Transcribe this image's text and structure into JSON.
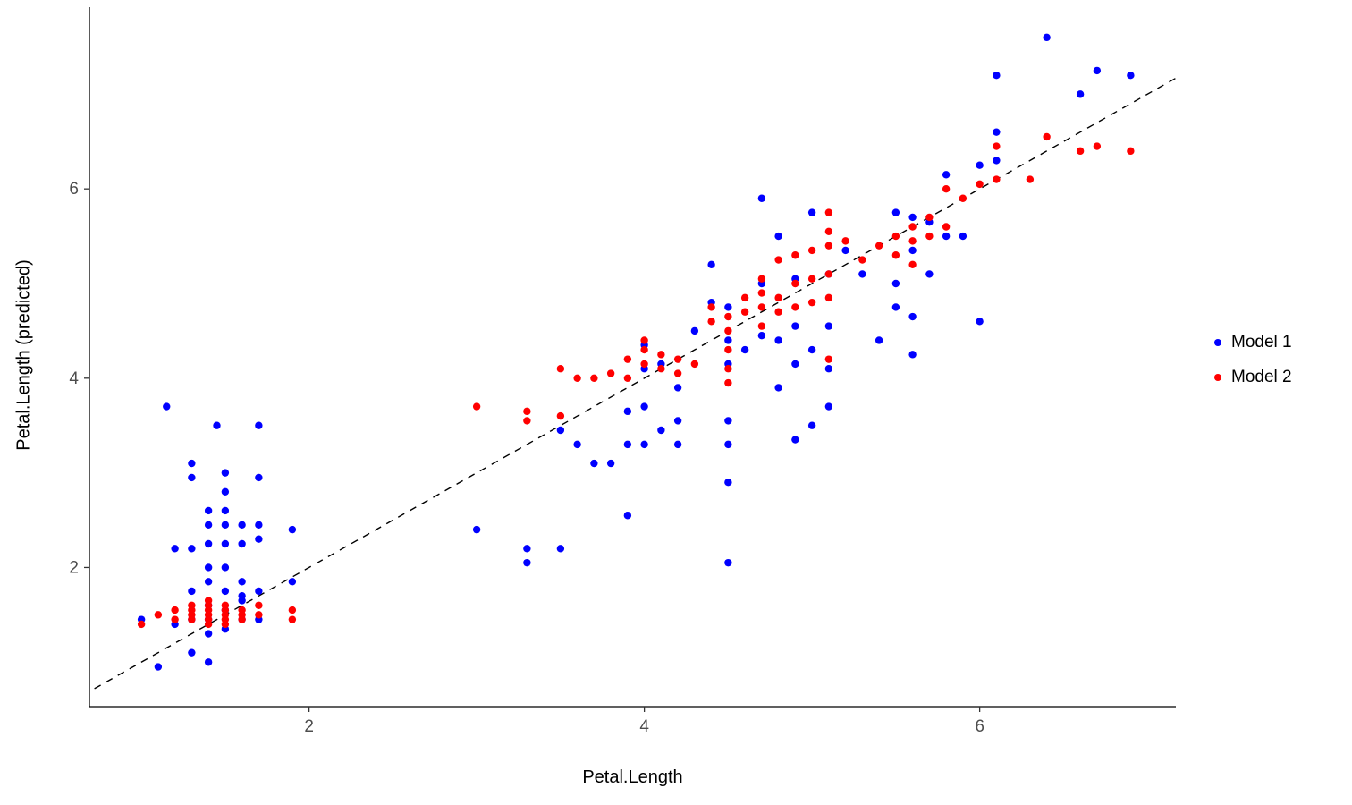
{
  "figure": {
    "background": "#FFFFFF"
  },
  "chart_data": {
    "type": "scatter",
    "title": "",
    "xlabel": "Petal.Length",
    "ylabel": "Petal.Length (predicted)",
    "x_domain": [
      0.69,
      7.17
    ],
    "y_domain": [
      0.53,
      7.92
    ],
    "x_ticks": [
      2,
      4,
      6
    ],
    "y_ticks": [
      2,
      4,
      6
    ],
    "grid": false,
    "legend_position": "right",
    "point_radius_px": 4.2,
    "axis_color": "#000000",
    "tick_label_color": "#4d4d4d",
    "reference_line": {
      "type": "identity",
      "style": "dashed",
      "color": "#000000",
      "from": 0.72,
      "to": 7.17
    },
    "series": [
      {
        "name": "Model 1",
        "color": "#0000FF",
        "points": [
          [
            1.0,
            1.45
          ],
          [
            1.1,
            0.95
          ],
          [
            1.15,
            3.7
          ],
          [
            1.2,
            1.4
          ],
          [
            1.2,
            2.2
          ],
          [
            1.3,
            1.1
          ],
          [
            1.3,
            1.45
          ],
          [
            1.3,
            1.75
          ],
          [
            1.3,
            2.2
          ],
          [
            1.3,
            2.95
          ],
          [
            1.3,
            3.1
          ],
          [
            1.4,
            1.0
          ],
          [
            1.4,
            1.3
          ],
          [
            1.4,
            1.45
          ],
          [
            1.4,
            1.6
          ],
          [
            1.4,
            1.85
          ],
          [
            1.4,
            2.0
          ],
          [
            1.4,
            2.25
          ],
          [
            1.4,
            2.45
          ],
          [
            1.4,
            2.6
          ],
          [
            1.45,
            3.5
          ],
          [
            1.5,
            1.35
          ],
          [
            1.5,
            1.55
          ],
          [
            1.5,
            1.75
          ],
          [
            1.5,
            2.0
          ],
          [
            1.5,
            2.25
          ],
          [
            1.5,
            2.45
          ],
          [
            1.5,
            2.6
          ],
          [
            1.5,
            2.8
          ],
          [
            1.5,
            3.0
          ],
          [
            1.6,
            1.45
          ],
          [
            1.6,
            1.65
          ],
          [
            1.6,
            1.85
          ],
          [
            1.6,
            2.25
          ],
          [
            1.6,
            2.45
          ],
          [
            1.6,
            1.7
          ],
          [
            1.7,
            1.45
          ],
          [
            1.7,
            1.75
          ],
          [
            1.7,
            2.3
          ],
          [
            1.7,
            2.45
          ],
          [
            1.7,
            2.95
          ],
          [
            1.7,
            3.5
          ],
          [
            1.9,
            1.85
          ],
          [
            1.9,
            2.4
          ],
          [
            3.0,
            2.4
          ],
          [
            3.3,
            2.05
          ],
          [
            3.3,
            2.2
          ],
          [
            3.5,
            2.2
          ],
          [
            3.5,
            3.45
          ],
          [
            3.6,
            3.3
          ],
          [
            3.7,
            3.1
          ],
          [
            3.8,
            3.1
          ],
          [
            3.9,
            2.55
          ],
          [
            3.9,
            3.3
          ],
          [
            3.9,
            3.65
          ],
          [
            4.0,
            3.3
          ],
          [
            4.0,
            3.7
          ],
          [
            4.0,
            4.1
          ],
          [
            4.0,
            4.35
          ],
          [
            4.1,
            3.45
          ],
          [
            4.1,
            4.15
          ],
          [
            4.2,
            3.3
          ],
          [
            4.2,
            3.55
          ],
          [
            4.2,
            3.9
          ],
          [
            4.3,
            4.5
          ],
          [
            4.4,
            4.8
          ],
          [
            4.4,
            5.2
          ],
          [
            4.5,
            2.05
          ],
          [
            4.5,
            2.9
          ],
          [
            4.5,
            3.3
          ],
          [
            4.5,
            3.55
          ],
          [
            4.5,
            4.15
          ],
          [
            4.5,
            4.4
          ],
          [
            4.5,
            4.75
          ],
          [
            4.6,
            4.3
          ],
          [
            4.7,
            4.45
          ],
          [
            4.7,
            5.0
          ],
          [
            4.7,
            5.9
          ],
          [
            4.8,
            3.9
          ],
          [
            4.8,
            4.4
          ],
          [
            4.8,
            5.5
          ],
          [
            4.9,
            3.35
          ],
          [
            4.9,
            4.15
          ],
          [
            4.9,
            4.55
          ],
          [
            4.9,
            5.05
          ],
          [
            5.0,
            3.5
          ],
          [
            5.0,
            4.3
          ],
          [
            5.0,
            5.75
          ],
          [
            5.1,
            3.7
          ],
          [
            5.1,
            4.1
          ],
          [
            5.1,
            4.55
          ],
          [
            5.1,
            5.1
          ],
          [
            5.2,
            5.35
          ],
          [
            5.3,
            5.1
          ],
          [
            5.4,
            4.4
          ],
          [
            5.5,
            4.75
          ],
          [
            5.5,
            5.0
          ],
          [
            5.5,
            5.75
          ],
          [
            5.6,
            4.25
          ],
          [
            5.6,
            4.65
          ],
          [
            5.6,
            5.35
          ],
          [
            5.6,
            5.7
          ],
          [
            5.7,
            5.1
          ],
          [
            5.7,
            5.65
          ],
          [
            5.8,
            5.5
          ],
          [
            5.8,
            6.15
          ],
          [
            5.9,
            5.5
          ],
          [
            6.0,
            4.6
          ],
          [
            6.0,
            6.25
          ],
          [
            6.1,
            6.3
          ],
          [
            6.1,
            6.6
          ],
          [
            6.1,
            7.2
          ],
          [
            6.4,
            7.6
          ],
          [
            6.6,
            7.0
          ],
          [
            6.7,
            7.25
          ],
          [
            6.9,
            7.2
          ]
        ]
      },
      {
        "name": "Model 2",
        "color": "#FF0000",
        "points": [
          [
            1.0,
            1.4
          ],
          [
            1.1,
            1.5
          ],
          [
            1.2,
            1.45
          ],
          [
            1.2,
            1.55
          ],
          [
            1.3,
            1.45
          ],
          [
            1.3,
            1.5
          ],
          [
            1.3,
            1.55
          ],
          [
            1.3,
            1.6
          ],
          [
            1.4,
            1.4
          ],
          [
            1.4,
            1.45
          ],
          [
            1.4,
            1.5
          ],
          [
            1.4,
            1.55
          ],
          [
            1.4,
            1.6
          ],
          [
            1.4,
            1.65
          ],
          [
            1.5,
            1.4
          ],
          [
            1.5,
            1.45
          ],
          [
            1.5,
            1.5
          ],
          [
            1.5,
            1.55
          ],
          [
            1.5,
            1.6
          ],
          [
            1.6,
            1.45
          ],
          [
            1.6,
            1.5
          ],
          [
            1.6,
            1.55
          ],
          [
            1.7,
            1.5
          ],
          [
            1.7,
            1.6
          ],
          [
            1.9,
            1.45
          ],
          [
            1.9,
            1.55
          ],
          [
            3.0,
            3.7
          ],
          [
            3.3,
            3.55
          ],
          [
            3.3,
            3.65
          ],
          [
            3.5,
            3.6
          ],
          [
            3.5,
            4.1
          ],
          [
            3.6,
            4.0
          ],
          [
            3.7,
            4.0
          ],
          [
            3.8,
            4.05
          ],
          [
            3.9,
            4.0
          ],
          [
            3.9,
            4.2
          ],
          [
            4.0,
            4.15
          ],
          [
            4.0,
            4.3
          ],
          [
            4.0,
            4.4
          ],
          [
            4.1,
            4.1
          ],
          [
            4.1,
            4.25
          ],
          [
            4.2,
            4.05
          ],
          [
            4.2,
            4.2
          ],
          [
            4.3,
            4.15
          ],
          [
            4.4,
            4.6
          ],
          [
            4.4,
            4.75
          ],
          [
            4.5,
            3.95
          ],
          [
            4.5,
            4.1
          ],
          [
            4.5,
            4.3
          ],
          [
            4.5,
            4.5
          ],
          [
            4.5,
            4.65
          ],
          [
            4.6,
            4.7
          ],
          [
            4.6,
            4.85
          ],
          [
            4.7,
            4.55
          ],
          [
            4.7,
            4.75
          ],
          [
            4.7,
            4.9
          ],
          [
            4.7,
            5.05
          ],
          [
            4.8,
            4.7
          ],
          [
            4.8,
            4.85
          ],
          [
            4.8,
            5.25
          ],
          [
            4.9,
            4.75
          ],
          [
            4.9,
            5.0
          ],
          [
            4.9,
            5.3
          ],
          [
            5.0,
            4.8
          ],
          [
            5.0,
            5.05
          ],
          [
            5.0,
            5.35
          ],
          [
            5.1,
            4.2
          ],
          [
            5.1,
            4.85
          ],
          [
            5.1,
            5.1
          ],
          [
            5.1,
            5.4
          ],
          [
            5.1,
            5.55
          ],
          [
            5.1,
            5.75
          ],
          [
            5.2,
            5.45
          ],
          [
            5.3,
            5.25
          ],
          [
            5.4,
            5.4
          ],
          [
            5.5,
            5.3
          ],
          [
            5.5,
            5.5
          ],
          [
            5.6,
            5.2
          ],
          [
            5.6,
            5.45
          ],
          [
            5.6,
            5.6
          ],
          [
            5.7,
            5.5
          ],
          [
            5.7,
            5.7
          ],
          [
            5.8,
            5.6
          ],
          [
            5.8,
            6.0
          ],
          [
            5.9,
            5.9
          ],
          [
            6.0,
            6.05
          ],
          [
            6.1,
            6.1
          ],
          [
            6.1,
            6.45
          ],
          [
            6.3,
            6.1
          ],
          [
            6.4,
            6.55
          ],
          [
            6.6,
            6.4
          ],
          [
            6.7,
            6.45
          ],
          [
            6.9,
            6.4
          ]
        ]
      }
    ]
  }
}
